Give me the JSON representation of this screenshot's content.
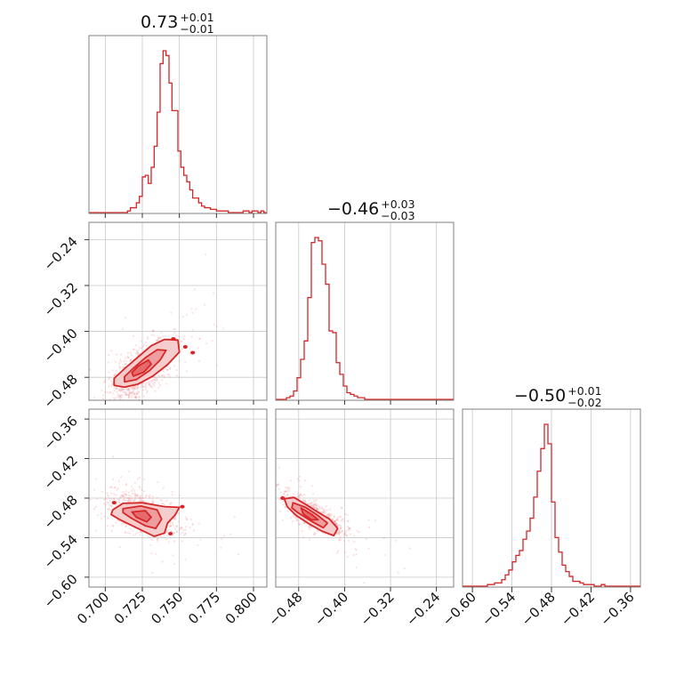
{
  "chart_data": {
    "type": "corner",
    "color": "#d62728",
    "parameters": [
      {
        "id": "p0",
        "title": {
          "value": "0.73",
          "plus": "+0.01",
          "minus": "−0.01"
        },
        "axis_range": [
          0.689,
          0.809
        ],
        "ticks": [
          0.7,
          0.725,
          0.75,
          0.775,
          0.8
        ],
        "tick_labels": [
          "0.700",
          "0.725",
          "0.750",
          "0.775",
          "0.800"
        ],
        "histogram": {
          "edges": [
            0.689,
            0.809
          ],
          "counts": [
            0,
            0,
            0,
            0,
            0,
            0,
            0,
            0,
            0,
            0,
            0,
            0,
            0,
            1,
            3,
            3,
            6,
            10,
            22,
            23,
            18,
            28,
            41,
            62,
            92,
            100,
            97,
            80,
            63,
            63,
            38,
            28,
            23,
            19,
            14,
            9,
            9,
            6,
            4,
            3,
            3,
            2,
            2,
            1,
            1,
            1,
            1,
            0,
            0,
            0,
            0,
            0,
            1,
            1,
            0,
            1,
            1,
            0,
            1,
            0
          ]
        }
      },
      {
        "id": "p1",
        "title": {
          "value": "−0.46",
          "plus": "+0.03",
          "minus": "−0.03"
        },
        "axis_range": [
          -0.52,
          -0.21
        ],
        "ticks": [
          -0.48,
          -0.4,
          -0.32,
          -0.24
        ],
        "tick_labels": [
          "−0.48",
          "−0.40",
          "−0.32",
          "−0.24"
        ],
        "histogram": {
          "edges": [
            -0.52,
            -0.21
          ],
          "counts": [
            0,
            0,
            0,
            1,
            2,
            5,
            13,
            24,
            35,
            61,
            94,
            97,
            95,
            81,
            69,
            41,
            40,
            22,
            15,
            8,
            4,
            3,
            2,
            1,
            1,
            0,
            0,
            0,
            0,
            0,
            0,
            0,
            0,
            0,
            0,
            0,
            0,
            0,
            0,
            0,
            0,
            0,
            0,
            0,
            0,
            0,
            0,
            0,
            0,
            0
          ]
        }
      },
      {
        "id": "p2",
        "title": {
          "value": "−0.50",
          "plus": "+0.01",
          "minus": "−0.02"
        },
        "axis_range": [
          -0.615,
          -0.345
        ],
        "ticks": [
          -0.6,
          -0.54,
          -0.48,
          -0.42,
          -0.36
        ],
        "tick_labels": [
          "−0.60",
          "−0.54",
          "−0.48",
          "−0.42",
          "−0.36"
        ],
        "histogram": {
          "edges": [
            -0.615,
            -0.345
          ],
          "counts": [
            0,
            0,
            0,
            0,
            0,
            0,
            0,
            1,
            1,
            2,
            2,
            4,
            7,
            10,
            15,
            19,
            22,
            29,
            34,
            42,
            55,
            71,
            85,
            100,
            88,
            52,
            30,
            21,
            13,
            9,
            6,
            3,
            3,
            2,
            1,
            1,
            1,
            0,
            0,
            1,
            0,
            0,
            0,
            0,
            0,
            0,
            0,
            0,
            0,
            0
          ]
        }
      }
    ],
    "pairs": [
      {
        "x": "p0",
        "y": "p1",
        "center": [
          0.723,
          -0.473
        ],
        "scatter_sigma": [
          0.011,
          0.03
        ],
        "correlation": 0.68,
        "contours": [
          [
            [
              0.706,
              -0.494
            ],
            [
              0.713,
              -0.497
            ],
            [
              0.722,
              -0.492
            ],
            [
              0.732,
              -0.478
            ],
            [
              0.742,
              -0.458
            ],
            [
              0.75,
              -0.436
            ],
            [
              0.749,
              -0.415
            ],
            [
              0.74,
              -0.414
            ],
            [
              0.731,
              -0.425
            ],
            [
              0.722,
              -0.445
            ],
            [
              0.713,
              -0.465
            ],
            [
              0.706,
              -0.482
            ]
          ],
          [
            [
              0.713,
              -0.488
            ],
            [
              0.721,
              -0.484
            ],
            [
              0.73,
              -0.468
            ],
            [
              0.737,
              -0.45
            ],
            [
              0.741,
              -0.433
            ],
            [
              0.735,
              -0.432
            ],
            [
              0.727,
              -0.446
            ],
            [
              0.719,
              -0.464
            ],
            [
              0.713,
              -0.479
            ]
          ],
          [
            [
              0.719,
              -0.478
            ],
            [
              0.726,
              -0.471
            ],
            [
              0.731,
              -0.457
            ],
            [
              0.729,
              -0.45
            ],
            [
              0.722,
              -0.461
            ],
            [
              0.718,
              -0.472
            ]
          ]
        ],
        "blobs": [
          [
            0.754,
            -0.427
          ],
          [
            0.746,
            -0.413
          ],
          [
            0.759,
            -0.437
          ]
        ]
      },
      {
        "x": "p0",
        "y": "p2",
        "center": [
          0.725,
          -0.504
        ],
        "scatter_sigma": [
          0.011,
          0.015
        ],
        "correlation": -0.45,
        "contours": [
          [
            [
              0.705,
              -0.498
            ],
            [
              0.712,
              -0.488
            ],
            [
              0.725,
              -0.487
            ],
            [
              0.74,
              -0.493
            ],
            [
              0.75,
              -0.494
            ],
            [
              0.747,
              -0.506
            ],
            [
              0.742,
              -0.518
            ],
            [
              0.74,
              -0.533
            ],
            [
              0.733,
              -0.538
            ],
            [
              0.722,
              -0.526
            ],
            [
              0.71,
              -0.513
            ],
            [
              0.704,
              -0.505
            ]
          ],
          [
            [
              0.712,
              -0.496
            ],
            [
              0.724,
              -0.492
            ],
            [
              0.735,
              -0.498
            ],
            [
              0.738,
              -0.512
            ],
            [
              0.734,
              -0.526
            ],
            [
              0.727,
              -0.522
            ],
            [
              0.718,
              -0.511
            ],
            [
              0.712,
              -0.502
            ]
          ],
          [
            [
              0.718,
              -0.501
            ],
            [
              0.727,
              -0.499
            ],
            [
              0.731,
              -0.509
            ],
            [
              0.728,
              -0.516
            ],
            [
              0.721,
              -0.509
            ]
          ]
        ],
        "blobs": [
          [
            0.706,
            -0.487
          ],
          [
            0.752,
            -0.493
          ],
          [
            0.744,
            -0.534
          ]
        ]
      },
      {
        "x": "p1",
        "y": "p2",
        "center": [
          -0.455,
          -0.505
        ],
        "scatter_sigma": [
          0.028,
          0.016
        ],
        "correlation": -0.82,
        "contours": [
          [
            [
              -0.505,
              -0.481
            ],
            [
              -0.488,
              -0.479
            ],
            [
              -0.467,
              -0.49
            ],
            [
              -0.447,
              -0.501
            ],
            [
              -0.426,
              -0.512
            ],
            [
              -0.412,
              -0.526
            ],
            [
              -0.419,
              -0.537
            ],
            [
              -0.44,
              -0.53
            ],
            [
              -0.462,
              -0.519
            ],
            [
              -0.485,
              -0.506
            ],
            [
              -0.5,
              -0.493
            ]
          ],
          [
            [
              -0.49,
              -0.487
            ],
            [
              -0.468,
              -0.494
            ],
            [
              -0.447,
              -0.506
            ],
            [
              -0.43,
              -0.518
            ],
            [
              -0.437,
              -0.525
            ],
            [
              -0.458,
              -0.515
            ],
            [
              -0.48,
              -0.503
            ],
            [
              -0.492,
              -0.495
            ]
          ],
          [
            [
              -0.476,
              -0.495
            ],
            [
              -0.457,
              -0.505
            ],
            [
              -0.446,
              -0.513
            ],
            [
              -0.458,
              -0.513
            ],
            [
              -0.472,
              -0.504
            ]
          ]
        ],
        "blobs": [
          [
            -0.508,
            -0.48
          ]
        ]
      }
    ]
  }
}
